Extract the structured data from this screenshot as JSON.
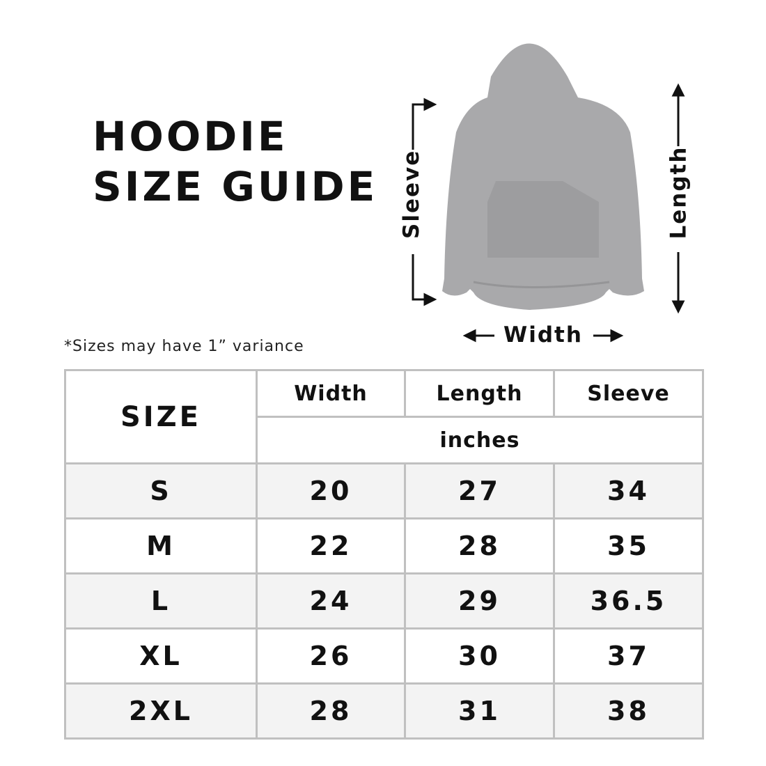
{
  "title": {
    "line1": "HOODIE",
    "line2": "SIZE GUIDE"
  },
  "diagram": {
    "sleeve": "Sleeve",
    "length": "Length",
    "width": "Width"
  },
  "note": "*Sizes may have 1” variance",
  "table": {
    "size_header": "SIZE",
    "columns": [
      "Width",
      "Length",
      "Sleeve"
    ],
    "unit": "inches",
    "rows": [
      {
        "size": "S",
        "width": "20",
        "length": "27",
        "sleeve": "34"
      },
      {
        "size": "M",
        "width": "22",
        "length": "28",
        "sleeve": "35"
      },
      {
        "size": "L",
        "width": "24",
        "length": "29",
        "sleeve": "36.5"
      },
      {
        "size": "XL",
        "width": "26",
        "length": "30",
        "sleeve": "37"
      },
      {
        "size": "2XL",
        "width": "28",
        "length": "31",
        "sleeve": "38"
      }
    ]
  },
  "colors": {
    "border": "#c0c0c0",
    "shade": "#f3f3f3",
    "hoodie": "#a9a9ab"
  }
}
